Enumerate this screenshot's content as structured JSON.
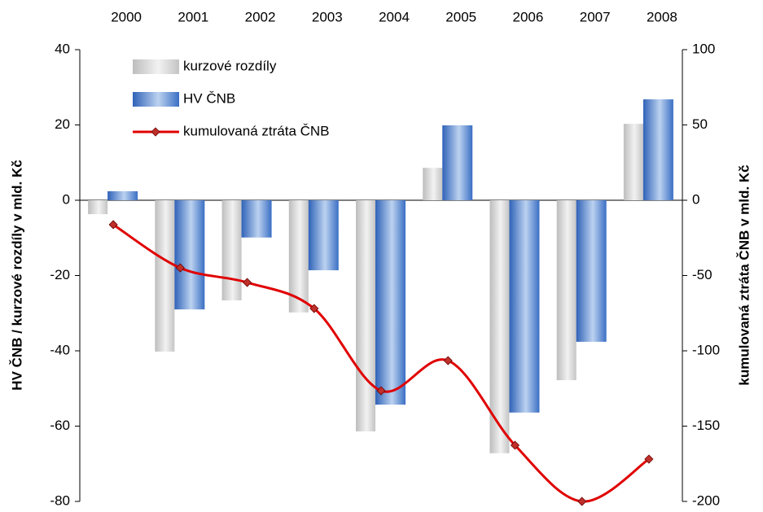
{
  "chart_data": {
    "type": "bar-line",
    "categories": [
      "2000",
      "2001",
      "2002",
      "2003",
      "2004",
      "2005",
      "2006",
      "2007",
      "2008"
    ],
    "y_label": "HV ČNB / kurzové rozdíly v mld. Kč",
    "y2_label": "kumulovaná ztráta ČNB v mld. Kč",
    "series": [
      {
        "name": "kurzové rozdíly",
        "type": "bar",
        "color": "#c8c8c8",
        "values": [
          -3.7,
          -40.2,
          -26.6,
          -29.8,
          -61.4,
          8.6,
          -67.2,
          -47.8,
          20.3
        ]
      },
      {
        "name": "HV ČNB",
        "type": "bar",
        "color": "#3a6fc4",
        "values": [
          2.4,
          -29,
          -9.9,
          -18.6,
          -54.3,
          19.9,
          -56.4,
          -37.6,
          26.8
        ]
      },
      {
        "name": "kumulovaná ztráta ČNB",
        "type": "line",
        "axis": "y2",
        "color": "#e00000",
        "marker_color": "#c0302a",
        "values": [
          -16.2,
          -44.9,
          -54.6,
          -71.9,
          -126.5,
          -106.5,
          -162.7,
          -200,
          -171.9
        ]
      }
    ],
    "ylim": [
      -80,
      40
    ],
    "yticks": [
      -80,
      -60,
      -40,
      -20,
      0,
      20,
      40
    ],
    "y2lim": [
      -200,
      100
    ],
    "y2ticks": [
      -200,
      -150,
      -100,
      -50,
      0,
      50,
      100
    ],
    "legend": "top-left"
  }
}
